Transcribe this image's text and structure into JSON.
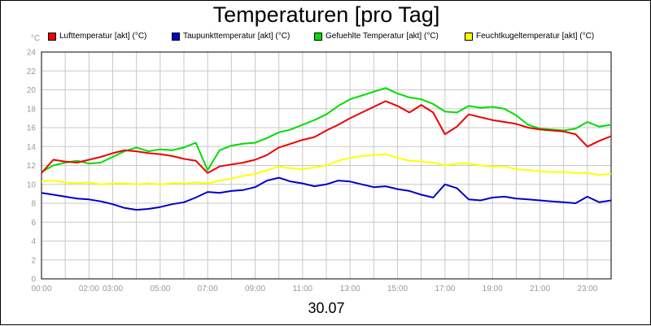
{
  "chart_data": {
    "type": "line",
    "title": "Temperaturen [pro Tag]",
    "unit": "°C",
    "date": "30.07",
    "ylim": [
      0,
      24
    ],
    "ytick_step": 2,
    "yticks": [
      "0",
      "2",
      "4",
      "6",
      "8",
      "10",
      "12",
      "14",
      "16",
      "18",
      "20",
      "22",
      "24"
    ],
    "xlim_hours": [
      0,
      24
    ],
    "xticks": [
      {
        "hour": 0,
        "label": "00:00"
      },
      {
        "hour": 2,
        "label": "02:00"
      },
      {
        "hour": 3,
        "label": "03:00"
      },
      {
        "hour": 5,
        "label": "05:00"
      },
      {
        "hour": 7,
        "label": "07:00"
      },
      {
        "hour": 9,
        "label": "09:00"
      },
      {
        "hour": 11,
        "label": "11:00"
      },
      {
        "hour": 13,
        "label": "13:00"
      },
      {
        "hour": 15,
        "label": "15:00"
      },
      {
        "hour": 17,
        "label": "17:00"
      },
      {
        "hour": 19,
        "label": "19:00"
      },
      {
        "hour": 21,
        "label": "21:00"
      },
      {
        "hour": 23,
        "label": "23:00"
      }
    ],
    "grid": true,
    "legend_position": "top",
    "x": [
      0,
      0.5,
      1,
      1.5,
      2,
      2.5,
      3,
      3.5,
      4,
      4.5,
      5,
      5.5,
      6,
      6.5,
      7,
      7.5,
      8,
      8.5,
      9,
      9.5,
      10,
      10.5,
      11,
      11.5,
      12,
      12.5,
      13,
      13.5,
      14,
      14.5,
      15,
      15.5,
      16,
      16.5,
      17,
      17.5,
      18,
      18.5,
      19,
      19.5,
      20,
      20.5,
      21,
      21.5,
      22,
      22.5,
      23,
      23.5,
      24
    ],
    "series": [
      {
        "name": "Lufttemperatur [akt] (°C)",
        "color": "#ee0000",
        "values": [
          11.2,
          12.6,
          12.4,
          12.3,
          12.6,
          12.9,
          13.3,
          13.6,
          13.5,
          13.3,
          13.2,
          13.0,
          12.7,
          12.5,
          11.2,
          11.9,
          12.1,
          12.3,
          12.6,
          13.1,
          13.9,
          14.3,
          14.7,
          15.0,
          15.7,
          16.3,
          17.0,
          17.6,
          18.2,
          18.8,
          18.3,
          17.6,
          18.4,
          17.6,
          15.3,
          16.1,
          17.4,
          17.1,
          16.8,
          16.6,
          16.4,
          16.0,
          15.8,
          15.7,
          15.6,
          15.3,
          14.0,
          14.6,
          15.1
        ]
      },
      {
        "name": "Taupunkttemperatur [akt] (°C)",
        "color": "#0000cc",
        "values": [
          9.1,
          8.9,
          8.7,
          8.5,
          8.4,
          8.2,
          7.9,
          7.5,
          7.3,
          7.4,
          7.6,
          7.9,
          8.1,
          8.6,
          9.2,
          9.1,
          9.3,
          9.4,
          9.7,
          10.4,
          10.7,
          10.3,
          10.1,
          9.8,
          10.0,
          10.4,
          10.3,
          10.0,
          9.7,
          9.8,
          9.5,
          9.3,
          8.9,
          8.6,
          10.0,
          9.6,
          8.4,
          8.3,
          8.6,
          8.7,
          8.5,
          8.4,
          8.3,
          8.2,
          8.1,
          8.0,
          8.7,
          8.1,
          8.3
        ]
      },
      {
        "name": "Gefuehlte Temperatur [akt] (°C)",
        "color": "#00dd00",
        "values": [
          11.3,
          12.0,
          12.3,
          12.5,
          12.2,
          12.3,
          12.9,
          13.5,
          13.9,
          13.5,
          13.7,
          13.6,
          13.9,
          14.4,
          11.5,
          13.6,
          14.1,
          14.3,
          14.4,
          14.9,
          15.5,
          15.8,
          16.3,
          16.8,
          17.4,
          18.3,
          19.0,
          19.4,
          19.8,
          20.2,
          19.6,
          19.2,
          19.0,
          18.5,
          17.7,
          17.6,
          18.3,
          18.1,
          18.2,
          18.0,
          17.3,
          16.3,
          15.9,
          15.8,
          15.7,
          15.9,
          16.6,
          16.1,
          16.3
        ]
      },
      {
        "name": "Feuchtkugeltemperatur [akt] (°C)",
        "color": "#ffff00",
        "values": [
          10.3,
          10.4,
          10.2,
          10.1,
          10.2,
          10.0,
          10.1,
          10.1,
          10.0,
          10.1,
          10.0,
          10.1,
          10.1,
          10.2,
          10.1,
          10.4,
          10.6,
          10.9,
          11.1,
          11.5,
          11.9,
          11.7,
          11.6,
          11.8,
          12.0,
          12.5,
          12.8,
          13.0,
          13.1,
          13.2,
          12.8,
          12.5,
          12.4,
          12.3,
          12.0,
          12.2,
          12.2,
          12.0,
          11.9,
          11.9,
          11.6,
          11.5,
          11.4,
          11.3,
          11.3,
          11.2,
          11.2,
          11.0,
          11.1
        ]
      }
    ]
  }
}
